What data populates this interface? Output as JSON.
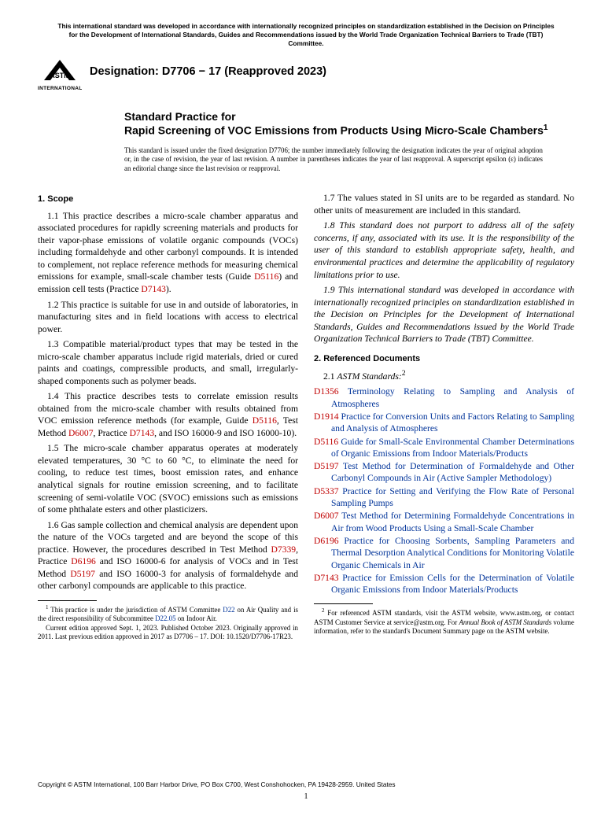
{
  "topNotice": "This international standard was developed in accordance with internationally recognized principles on standardization established in the Decision on Principles for the Development of International Standards, Guides and Recommendations issued by the World Trade Organization Technical Barriers to Trade (TBT) Committee.",
  "logoText": "INTERNATIONAL",
  "designation": "Designation: D7706 − 17 (Reapproved 2023)",
  "titlePre": "Standard Practice for",
  "titleMain": "Rapid Screening of VOC Emissions from Products Using Micro-Scale Chambers",
  "titleSup": "1",
  "issuance": "This standard is issued under the fixed designation D7706; the number immediately following the designation indicates the year of original adoption or, in the case of revision, the year of last revision. A number in parentheses indicates the year of last reapproval. A superscript epsilon (ɛ) indicates an editorial change since the last revision or reapproval.",
  "scopeHead": "1. Scope",
  "p11a": "1.1 This practice describes a micro-scale chamber apparatus and associated procedures for rapidly screening materials and products for their vapor-phase emissions of volatile organic compounds (VOCs) including formaldehyde and other carbonyl compounds. It is intended to complement, not replace reference methods for measuring chemical emissions for example, small-scale chamber tests (Guide ",
  "p11b": ") and emission cell tests (Practice ",
  "p11c": ").",
  "link_D5116": "D5116",
  "link_D7143": "D7143",
  "p12": "1.2 This practice is suitable for use in and outside of laboratories, in manufacturing sites and in field locations with access to electrical power.",
  "p13": "1.3 Compatible material/product types that may be tested in the micro-scale chamber apparatus include rigid materials, dried or cured paints and coatings, compressible products, and small, irregularly-shaped components such as polymer beads.",
  "p14a": "1.4 This practice describes tests to correlate emission results obtained from the micro-scale chamber with results obtained from VOC emission reference methods (for example, Guide ",
  "p14b": ", Test Method ",
  "p14c": ", Practice ",
  "p14d": ", and ISO 16000-9 and ISO 16000-10).",
  "link_D6007": "D6007",
  "p15": "1.5 The micro-scale chamber apparatus operates at moderately elevated temperatures, 30 °C to 60 °C, to eliminate the need for cooling, to reduce test times, boost emission rates, and enhance analytical signals for routine emission screening, and to facilitate screening of semi-volatile VOC (SVOC) emissions such as emissions of some phthalate esters and other plasticizers.",
  "p16a": "1.6 Gas sample collection and chemical analysis are dependent upon the nature of the VOCs targeted and are beyond the scope of this practice. However, the procedures described in Test Method ",
  "p16b": ", Practice ",
  "p16c": " and ISO 16000-6 for analysis of VOCs and in Test Method ",
  "p16d": " and ISO 16000-3 for analysis of formaldehyde and other carbonyl compounds are applicable to this practice.",
  "link_D7339": "D7339",
  "link_D6196": "D6196",
  "link_D5197": "D5197",
  "p17": "1.7 The values stated in SI units are to be regarded as standard. No other units of measurement are included in this standard.",
  "p18": "1.8 This standard does not purport to address all of the safety concerns, if any, associated with its use. It is the responsibility of the user of this standard to establish appropriate safety, health, and environmental practices and determine the applicability of regulatory limitations prior to use.",
  "p19": "1.9 This international standard was developed in accordance with internationally recognized principles on standardization established in the Decision on Principles for the Development of International Standards, Guides and Recommendations issued by the World Trade Organization Technical Barriers to Trade (TBT) Committee.",
  "refHead": "2. Referenced Documents",
  "subHead21a": "2.1 ",
  "subHead21b": "ASTM Standards:",
  "subHead21sup": "2",
  "refs": [
    {
      "id": "D1356",
      "title": "Terminology Relating to Sampling and Analysis of Atmospheres"
    },
    {
      "id": "D1914",
      "title": "Practice for Conversion Units and Factors Relating to Sampling and Analysis of Atmospheres"
    },
    {
      "id": "D5116",
      "title": "Guide for Small-Scale Environmental Chamber Determinations of Organic Emissions from Indoor Materials/Products"
    },
    {
      "id": "D5197",
      "title": "Test Method for Determination of Formaldehyde and Other Carbonyl Compounds in Air (Active Sampler Methodology)"
    },
    {
      "id": "D5337",
      "title": "Practice for Setting and Verifying the Flow Rate of Personal Sampling Pumps"
    },
    {
      "id": "D6007",
      "title": "Test Method for Determining Formaldehyde Concentrations in Air from Wood Products Using a Small-Scale Chamber"
    },
    {
      "id": "D6196",
      "title": "Practice for Choosing Sorbents, Sampling Parameters and Thermal Desorption Analytical Conditions for Monitoring Volatile Organic Chemicals in Air"
    },
    {
      "id": "D7143",
      "title": "Practice for Emission Cells for the Determination of Volatile Organic Emissions from Indoor Materials/Products"
    }
  ],
  "fn1a": " This practice is under the jurisdiction of ASTM Committee ",
  "fn1b": " on Air Quality and is the direct responsibility of Subcommittee ",
  "fn1c": " on Indoor Air.",
  "link_D22": "D22",
  "link_D2205": "D22.05",
  "fn1d": "Current edition approved Sept. 1, 2023. Published October 2023. Originally approved in 2011. Last previous edition approved in 2017 as D7706 – 17. DOI: 10.1520/D7706-17R23.",
  "fn2a": " For referenced ASTM standards, visit the ASTM website, www.astm.org, or contact ASTM Customer Service at service@astm.org. For ",
  "fn2b": "Annual Book of ASTM Standards",
  "fn2c": " volume information, refer to the standard's Document Summary page on the ASTM website.",
  "copyright": "Copyright © ASTM International, 100 Barr Harbor Drive, PO Box C700, West Conshohocken, PA 19428-2959. United States",
  "pageNum": "1",
  "colors": {
    "docLink": "#c00000",
    "titleLink": "#003399",
    "text": "#000000"
  }
}
